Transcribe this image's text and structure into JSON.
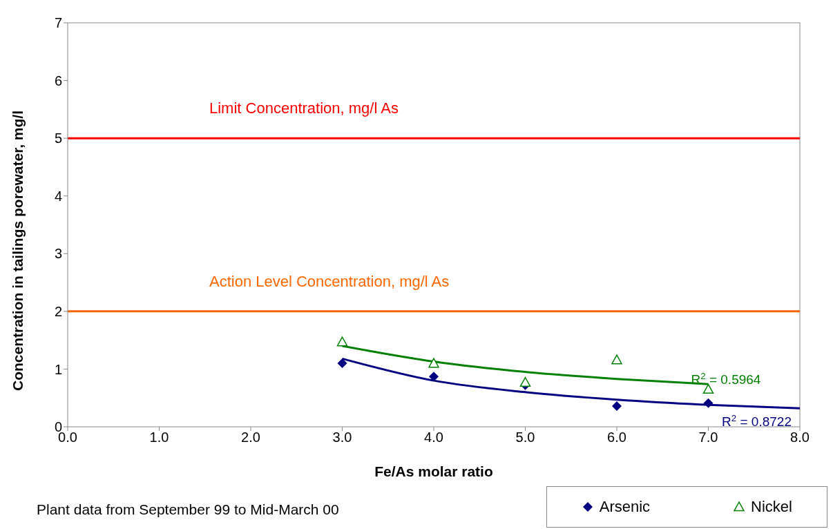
{
  "chart_data": {
    "type": "scatter",
    "xlabel": "Fe/As molar ratio",
    "ylabel": "Concentration in tailings porewater, mg/l",
    "xlim": [
      0,
      8
    ],
    "ylim": [
      0,
      7
    ],
    "xticks": [
      {
        "value": 0,
        "label": "0.0"
      },
      {
        "value": 1,
        "label": "1.0"
      },
      {
        "value": 2,
        "label": "2.0"
      },
      {
        "value": 3,
        "label": "3.0"
      },
      {
        "value": 4,
        "label": "4.0"
      },
      {
        "value": 5,
        "label": "5.0"
      },
      {
        "value": 6,
        "label": "6.0"
      },
      {
        "value": 7,
        "label": "7.0"
      },
      {
        "value": 8,
        "label": "8.0"
      }
    ],
    "yticks": [
      0,
      1,
      2,
      3,
      4,
      5,
      6,
      7
    ],
    "grid": false,
    "legend": "bottom right",
    "series": [
      {
        "name": "Arsenic",
        "marker": "diamond",
        "color": "#000080",
        "x": [
          3,
          4,
          5,
          6,
          7
        ],
        "values": [
          1.1,
          0.87,
          0.72,
          0.36,
          0.41
        ]
      },
      {
        "name": "Nickel",
        "marker": "triangle",
        "color": "#008000",
        "x": [
          3,
          4,
          5,
          6,
          7
        ],
        "values": [
          1.47,
          1.1,
          0.77,
          1.16,
          0.65
        ]
      },
      {
        "type": "line",
        "color": "#000080",
        "x": [
          3,
          4,
          5,
          6,
          7,
          8
        ],
        "values": [
          1.18,
          0.8,
          0.6,
          0.47,
          0.38,
          0.32
        ]
      },
      {
        "type": "line",
        "color": "#008000",
        "x": [
          3,
          4,
          5,
          6,
          7
        ],
        "values": [
          1.4,
          1.13,
          0.95,
          0.83,
          0.74
        ]
      }
    ],
    "ref_lines": [
      {
        "axis": "y",
        "value": 5,
        "label": "Limit Concentration, mg/l As",
        "color": "#ff0000"
      },
      {
        "axis": "y",
        "value": 2,
        "label": "Action Level Concentration, mg/l As",
        "color": "#ff6600"
      }
    ],
    "annotations": [
      {
        "text": "R$^{2}$ = 0.5964",
        "x": 7,
        "y": 0.74
      },
      {
        "text": "R$^{2}$ = 0.8722",
        "x": 8,
        "y": 0.32
      },
      "Plant data from September 99 to Mid-March 00"
    ]
  }
}
